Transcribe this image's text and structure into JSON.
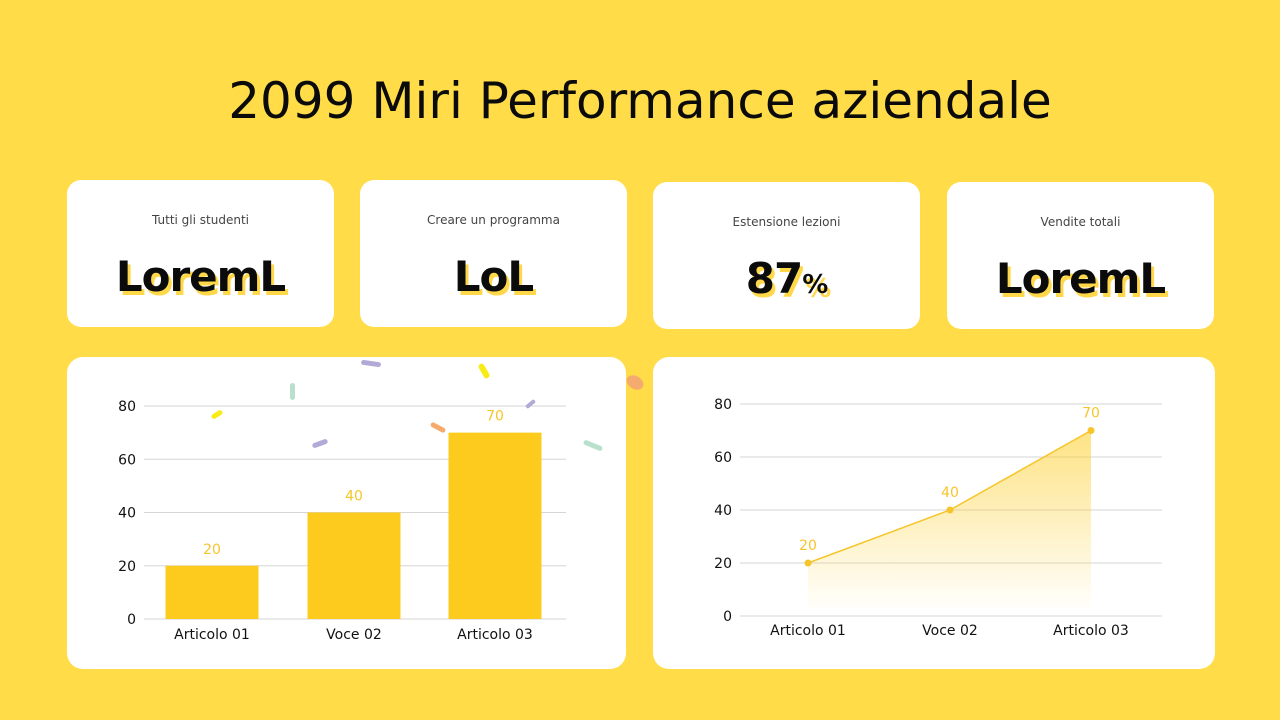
{
  "title": "2099 Miri Performance aziendale",
  "colors": {
    "background": "#FFDC48",
    "card": "#FFFFFF",
    "accent": "#FCCB1E",
    "value_label": "#F6C52A",
    "grid": "#D6D6D6",
    "text": "#0B0B0B"
  },
  "kpis": [
    {
      "label": "Tutti gli studenti",
      "value": "LoremL",
      "unit": ""
    },
    {
      "label": "Creare un programma",
      "value": "LoL",
      "unit": ""
    },
    {
      "label": "Estensione lezioni",
      "value": "87",
      "unit": "%"
    },
    {
      "label": "Vendite totali",
      "value": "LoremL",
      "unit": ""
    }
  ],
  "chart_data": [
    {
      "type": "bar",
      "title": "",
      "xlabel": "",
      "ylabel": "",
      "categories": [
        "Articolo 01",
        "Voce 02",
        "Articolo 03"
      ],
      "values": [
        20,
        40,
        70
      ],
      "data_labels": [
        "20",
        "40",
        "70"
      ],
      "yticks": [
        "0",
        "20",
        "40",
        "60",
        "80"
      ],
      "ylim": [
        0,
        80
      ],
      "grid": true,
      "legend": "none"
    },
    {
      "type": "area",
      "title": "",
      "xlabel": "",
      "ylabel": "",
      "categories": [
        "Articolo 01",
        "Voce 02",
        "Articolo 03"
      ],
      "values": [
        20,
        40,
        70
      ],
      "data_labels": [
        "20",
        "40",
        "70"
      ],
      "yticks": [
        "0",
        "20",
        "40",
        "60",
        "80"
      ],
      "ylim": [
        0,
        80
      ],
      "grid": true,
      "legend": "none"
    }
  ]
}
